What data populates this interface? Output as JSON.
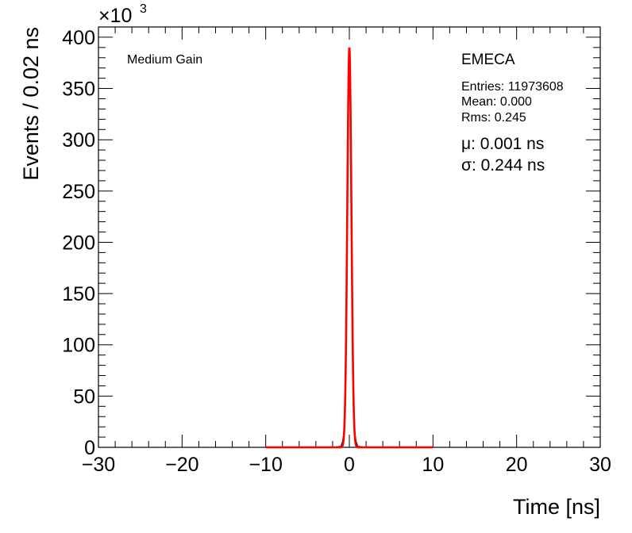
{
  "chart_data": {
    "type": "line",
    "xlabel": "Time [ns]",
    "ylabel": "Events / 0.02 ns",
    "y_multiplier_label": "×10",
    "y_multiplier_exp": "3",
    "xlim": [
      -30,
      30
    ],
    "ylim": [
      0,
      410
    ],
    "x_ticks": [
      -30,
      -20,
      -10,
      0,
      10,
      20,
      30
    ],
    "x_tick_labels": [
      "−30",
      "−20",
      "−10",
      "0",
      "10",
      "20",
      "30"
    ],
    "y_ticks": [
      0,
      50,
      100,
      150,
      200,
      250,
      300,
      350,
      400
    ],
    "y_tick_labels": [
      "0",
      "50",
      "100",
      "150",
      "200",
      "250",
      "300",
      "350",
      "400"
    ],
    "annotation_left": "Medium Gain",
    "stats": {
      "name": "EMECA",
      "entries": "Entries: 11973608",
      "mean": "Mean: 0.000",
      "rms": "Rms: 0.245"
    },
    "fit": {
      "mu": "μ: 0.001 ns",
      "sigma": "σ: 0.244 ns",
      "color": "#ff0000",
      "range": [
        -10,
        10
      ]
    },
    "series": [
      {
        "type": "histogram",
        "color": "#000000",
        "x": [
          -10,
          -2,
          -1.0,
          -0.8,
          -0.6,
          -0.5,
          -0.4,
          -0.3,
          -0.2,
          -0.1,
          0.0,
          0.1,
          0.2,
          0.3,
          0.4,
          0.5,
          0.6,
          0.8,
          1.0,
          2,
          10
        ],
        "values": [
          0,
          0,
          1,
          6,
          19,
          48,
          104,
          194,
          314,
          372,
          390,
          372,
          314,
          194,
          104,
          48,
          19,
          6,
          1,
          0,
          0
        ]
      },
      {
        "type": "gaussian_fit",
        "color": "#ff0000",
        "amplitude": 390,
        "mean": 0.001,
        "sigma": 0.244
      }
    ],
    "grid": false
  }
}
